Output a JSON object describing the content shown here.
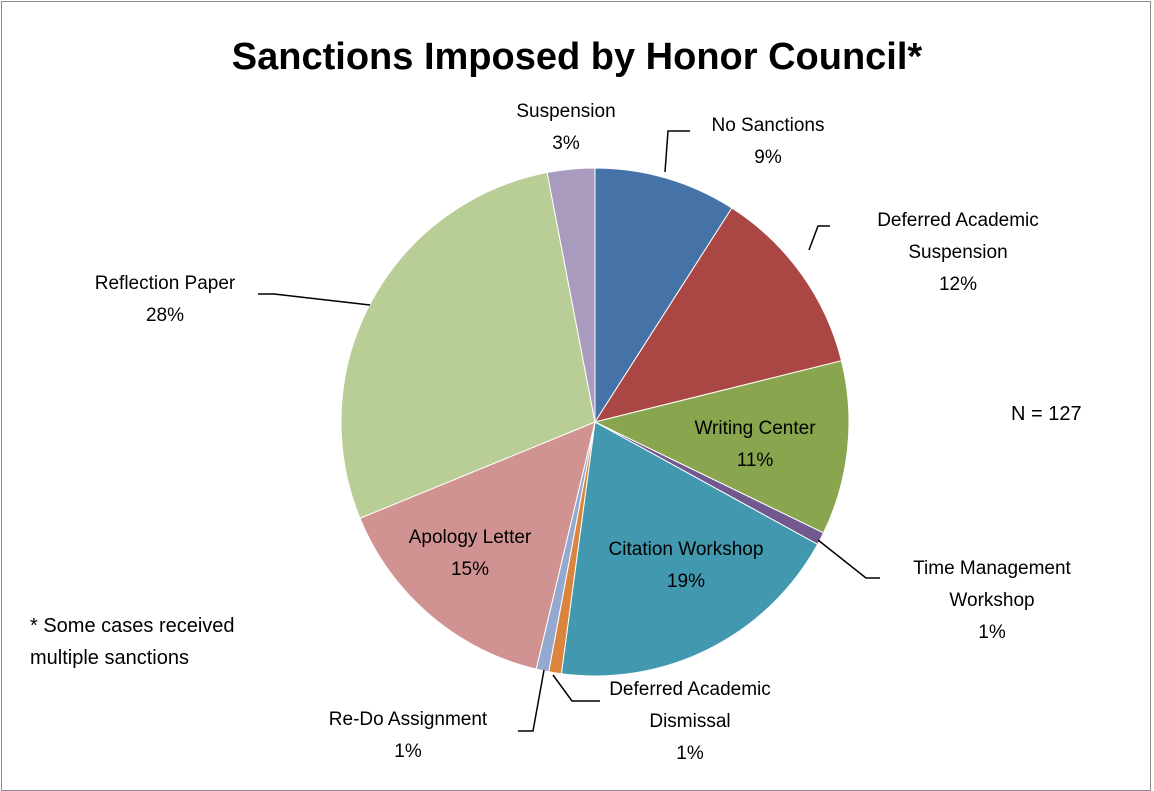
{
  "chart_data": {
    "type": "pie",
    "title": "Sanctions Imposed by Honor Council*",
    "slices": [
      {
        "label": [
          "No Sanctions"
        ],
        "pct_label": "9%",
        "value": 9,
        "color": "#4572a7"
      },
      {
        "label": [
          "Deferred Academic",
          "Suspension"
        ],
        "pct_label": "12%",
        "value": 12,
        "color": "#aa4643"
      },
      {
        "label": [
          "Writing Center"
        ],
        "pct_label": "11%",
        "value": 11,
        "color": "#89a54e"
      },
      {
        "label": [
          "Time Management",
          "Workshop"
        ],
        "pct_label": "1%",
        "value": 0.8,
        "color": "#71588f"
      },
      {
        "label": [
          "Citation Workshop"
        ],
        "pct_label": "19%",
        "value": 19,
        "color": "#4198af"
      },
      {
        "label": [
          "Deferred Academic",
          "Dismissal"
        ],
        "pct_label": "1%",
        "value": 0.8,
        "color": "#db843d"
      },
      {
        "label": [
          "Re-Do Assignment"
        ],
        "pct_label": "1%",
        "value": 0.8,
        "color": "#93a9cf"
      },
      {
        "label": [
          "Apology Letter"
        ],
        "pct_label": "15%",
        "value": 15,
        "color": "#d19392"
      },
      {
        "label": [
          "Reflection Paper"
        ],
        "pct_label": "28%",
        "value": 28,
        "color": "#b9cd96"
      },
      {
        "label": [
          "Suspension"
        ],
        "pct_label": "3%",
        "value": 3,
        "color": "#a99bbd"
      }
    ],
    "annotation_n": "N = 127",
    "footnote": "* Some cases received multiple sanctions"
  }
}
